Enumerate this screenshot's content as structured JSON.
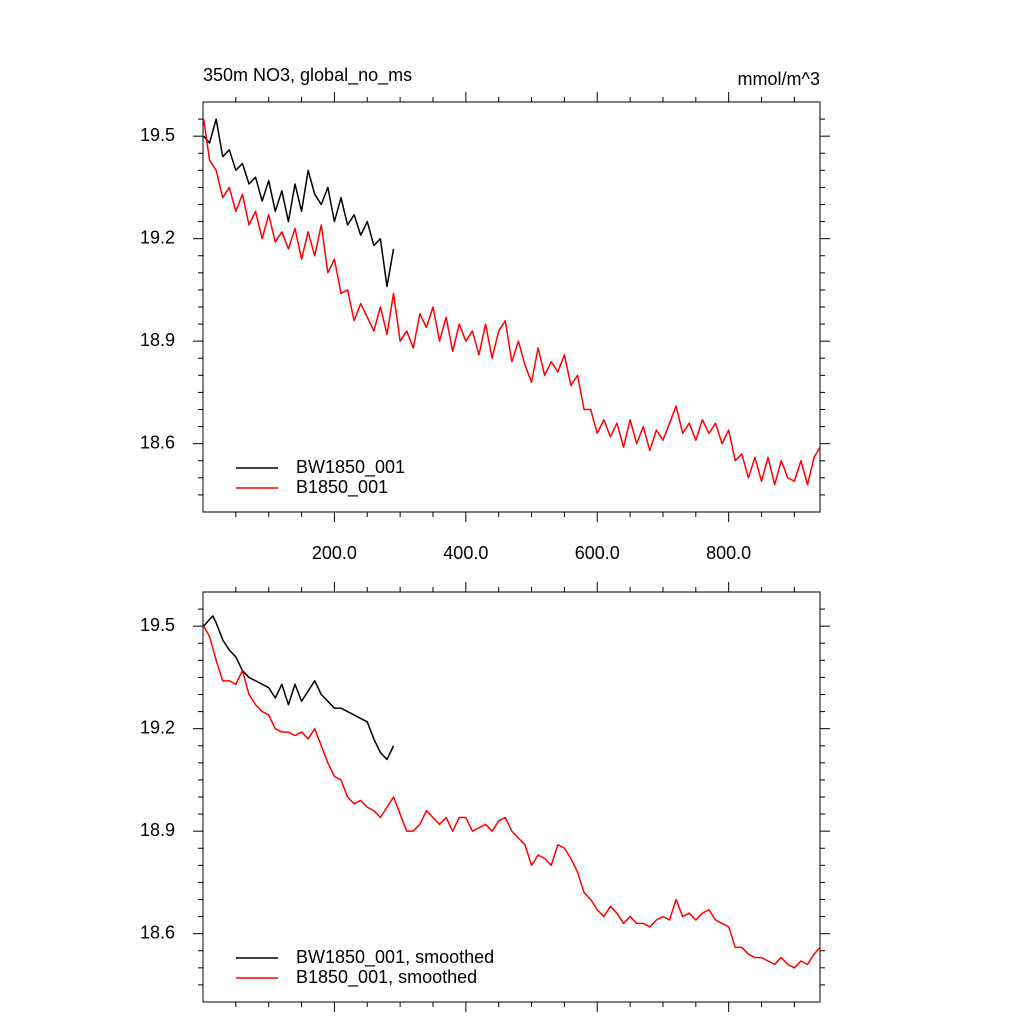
{
  "chart_data": [
    {
      "type": "line",
      "title": "350m NO3, global_no_ms",
      "units": "mmol/m^3",
      "xlim": [
        0,
        939
      ],
      "ylim": [
        18.4,
        19.6
      ],
      "xticks": [
        {
          "value": 200,
          "label": "200.0"
        },
        {
          "value": 400,
          "label": "400.0"
        },
        {
          "value": 600,
          "label": "600.0"
        },
        {
          "value": 800,
          "label": "800.0"
        }
      ],
      "show_xtick_labels": true,
      "xminorticks": [
        50,
        100,
        150,
        250,
        300,
        350,
        450,
        500,
        550,
        650,
        700,
        750,
        850,
        900
      ],
      "yticks": [
        18.6,
        18.9,
        19.2,
        19.5
      ],
      "yminorticks": [
        18.45,
        18.5,
        18.55,
        18.65,
        18.7,
        18.75,
        18.8,
        18.85,
        18.95,
        19.0,
        19.05,
        19.1,
        19.15,
        19.25,
        19.3,
        19.35,
        19.4,
        19.45,
        19.55
      ],
      "legend": "lower left",
      "series": [
        {
          "name": "BW1850_001",
          "color": "#000000",
          "x": [
            1,
            10,
            20,
            30,
            40,
            50,
            60,
            70,
            80,
            90,
            100,
            110,
            120,
            130,
            140,
            150,
            160,
            170,
            180,
            190,
            200,
            210,
            220,
            230,
            240,
            250,
            260,
            270,
            280,
            290
          ],
          "values": [
            19.5,
            19.48,
            19.55,
            19.44,
            19.46,
            19.4,
            19.42,
            19.36,
            19.38,
            19.31,
            19.37,
            19.28,
            19.34,
            19.25,
            19.36,
            19.28,
            19.4,
            19.33,
            19.3,
            19.35,
            19.25,
            19.32,
            19.24,
            19.27,
            19.21,
            19.25,
            19.18,
            19.2,
            19.06,
            19.17
          ]
        },
        {
          "name": "B1850_001",
          "color": "#ff0000",
          "x": [
            1,
            10,
            20,
            30,
            40,
            50,
            60,
            70,
            80,
            90,
            100,
            110,
            120,
            130,
            140,
            150,
            160,
            170,
            180,
            190,
            200,
            210,
            220,
            230,
            240,
            250,
            260,
            270,
            280,
            290,
            300,
            310,
            320,
            330,
            340,
            350,
            360,
            370,
            380,
            390,
            400,
            410,
            420,
            430,
            440,
            450,
            460,
            470,
            480,
            490,
            500,
            510,
            520,
            530,
            540,
            550,
            560,
            570,
            580,
            590,
            600,
            610,
            620,
            630,
            640,
            650,
            660,
            670,
            680,
            690,
            700,
            710,
            720,
            730,
            740,
            750,
            760,
            770,
            780,
            790,
            800,
            810,
            820,
            830,
            840,
            850,
            860,
            870,
            880,
            890,
            900,
            910,
            920,
            930,
            939
          ],
          "values": [
            19.55,
            19.43,
            19.4,
            19.32,
            19.35,
            19.28,
            19.33,
            19.24,
            19.28,
            19.2,
            19.27,
            19.19,
            19.22,
            19.17,
            19.23,
            19.14,
            19.22,
            19.15,
            19.24,
            19.1,
            19.14,
            19.04,
            19.05,
            18.96,
            19.01,
            18.97,
            18.93,
            19.0,
            18.92,
            19.04,
            18.9,
            18.93,
            18.88,
            18.98,
            18.94,
            19.0,
            18.9,
            18.97,
            18.87,
            18.95,
            18.9,
            18.93,
            18.86,
            18.95,
            18.85,
            18.93,
            18.96,
            18.84,
            18.9,
            18.83,
            18.78,
            18.88,
            18.8,
            18.84,
            18.81,
            18.86,
            18.77,
            18.8,
            18.7,
            18.7,
            18.63,
            18.67,
            18.62,
            18.66,
            18.59,
            18.67,
            18.6,
            18.65,
            18.58,
            18.64,
            18.61,
            18.66,
            18.71,
            18.63,
            18.66,
            18.61,
            18.67,
            18.63,
            18.66,
            18.6,
            18.64,
            18.55,
            18.57,
            18.5,
            18.56,
            18.49,
            18.56,
            18.48,
            18.55,
            18.5,
            18.49,
            18.55,
            18.48,
            18.56,
            18.59
          ]
        }
      ]
    },
    {
      "type": "line",
      "xlim": [
        0,
        939
      ],
      "ylim": [
        18.4,
        19.6
      ],
      "xticks": [
        200,
        400,
        600,
        800
      ],
      "show_xtick_labels": false,
      "xminorticks": [
        50,
        100,
        150,
        250,
        300,
        350,
        450,
        500,
        550,
        650,
        700,
        750,
        850,
        900
      ],
      "yticks": [
        18.6,
        18.9,
        19.2,
        19.5
      ],
      "yminorticks": [
        18.45,
        18.5,
        18.55,
        18.65,
        18.7,
        18.75,
        18.8,
        18.85,
        18.95,
        19.0,
        19.05,
        19.1,
        19.15,
        19.25,
        19.3,
        19.35,
        19.4,
        19.45,
        19.55
      ],
      "legend": "lower left",
      "series": [
        {
          "name": "BW1850_001, smoothed",
          "color": "#000000",
          "x": [
            1,
            10,
            15,
            20,
            30,
            40,
            50,
            60,
            70,
            80,
            90,
            100,
            110,
            120,
            130,
            140,
            150,
            160,
            170,
            180,
            190,
            200,
            210,
            220,
            230,
            240,
            250,
            260,
            270,
            280,
            290
          ],
          "values": [
            19.5,
            19.52,
            19.53,
            19.51,
            19.46,
            19.43,
            19.41,
            19.37,
            19.35,
            19.34,
            19.33,
            19.32,
            19.29,
            19.33,
            19.27,
            19.33,
            19.28,
            19.31,
            19.34,
            19.3,
            19.28,
            19.26,
            19.26,
            19.25,
            19.24,
            19.23,
            19.22,
            19.17,
            19.13,
            19.11,
            19.15
          ]
        },
        {
          "name": "B1850_001, smoothed",
          "color": "#ff0000",
          "x": [
            1,
            10,
            20,
            30,
            40,
            50,
            60,
            70,
            80,
            90,
            100,
            110,
            120,
            130,
            140,
            150,
            160,
            170,
            180,
            190,
            200,
            210,
            220,
            230,
            240,
            250,
            260,
            270,
            280,
            290,
            300,
            310,
            320,
            330,
            340,
            350,
            360,
            370,
            380,
            390,
            400,
            410,
            420,
            430,
            440,
            450,
            460,
            470,
            480,
            490,
            500,
            510,
            520,
            530,
            540,
            550,
            560,
            570,
            580,
            590,
            600,
            610,
            620,
            630,
            640,
            650,
            660,
            670,
            680,
            690,
            700,
            710,
            720,
            730,
            740,
            750,
            760,
            770,
            780,
            790,
            800,
            810,
            820,
            830,
            840,
            850,
            860,
            870,
            880,
            890,
            900,
            910,
            920,
            930,
            939
          ],
          "values": [
            19.5,
            19.47,
            19.4,
            19.34,
            19.34,
            19.33,
            19.37,
            19.3,
            19.27,
            19.25,
            19.24,
            19.2,
            19.19,
            19.19,
            19.18,
            19.19,
            19.17,
            19.2,
            19.15,
            19.1,
            19.06,
            19.05,
            19.0,
            18.98,
            18.99,
            18.97,
            18.96,
            18.94,
            18.97,
            19.0,
            18.95,
            18.9,
            18.9,
            18.92,
            18.96,
            18.94,
            18.92,
            18.94,
            18.9,
            18.94,
            18.94,
            18.9,
            18.91,
            18.92,
            18.9,
            18.93,
            18.94,
            18.9,
            18.88,
            18.86,
            18.8,
            18.83,
            18.82,
            18.8,
            18.86,
            18.85,
            18.82,
            18.78,
            18.72,
            18.7,
            18.67,
            18.65,
            18.68,
            18.66,
            18.63,
            18.65,
            18.63,
            18.63,
            18.62,
            18.64,
            18.65,
            18.64,
            18.7,
            18.65,
            18.66,
            18.64,
            18.66,
            18.67,
            18.64,
            18.63,
            18.62,
            18.56,
            18.56,
            18.54,
            18.53,
            18.53,
            18.52,
            18.51,
            18.53,
            18.51,
            18.5,
            18.52,
            18.51,
            18.54,
            18.56
          ]
        }
      ]
    }
  ]
}
